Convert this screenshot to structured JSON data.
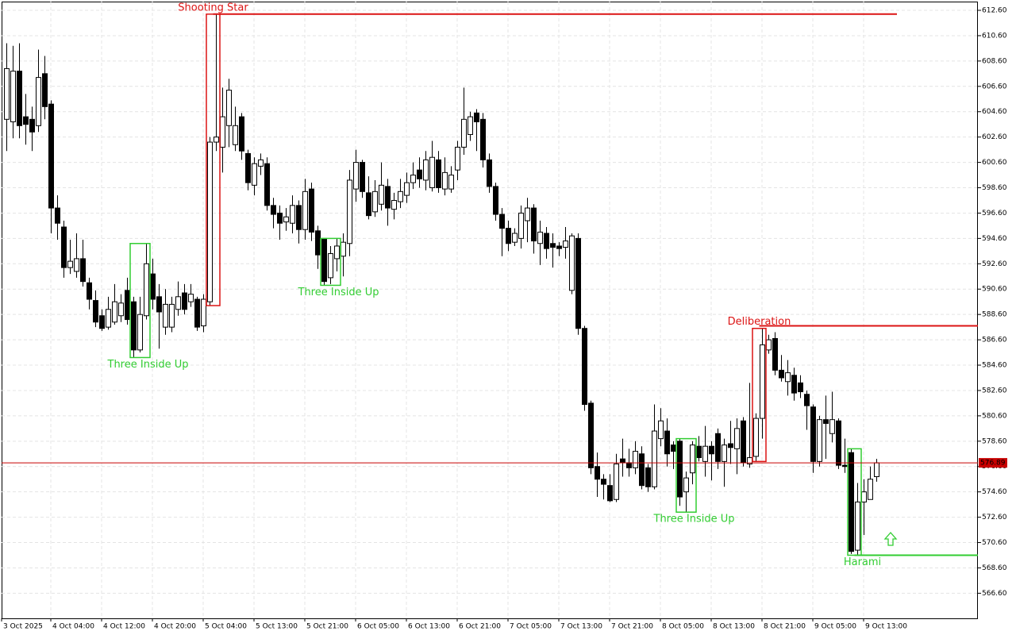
{
  "chart_data": {
    "type": "candlestick",
    "candles": [
      [
        604,
        610,
        601.5,
        608
      ],
      [
        603.8,
        609.8,
        602.5,
        607.8
      ],
      [
        607.8,
        610,
        602.5,
        603.5
      ],
      [
        604.2,
        606,
        602,
        603.6
      ],
      [
        604,
        605,
        601.5,
        603
      ],
      [
        603.5,
        609.5,
        603,
        607.3
      ],
      [
        607.6,
        609,
        604,
        605
      ],
      [
        605.2,
        605.5,
        595,
        597
      ],
      [
        597,
        598,
        594.5,
        595.8
      ],
      [
        595.5,
        596,
        591.5,
        592.3
      ],
      [
        592.3,
        594.5,
        591.8,
        592.8
      ],
      [
        592,
        595,
        591.5,
        593
      ],
      [
        593,
        594.5,
        590.8,
        591.2
      ],
      [
        591.1,
        591.5,
        589,
        589.8
      ],
      [
        589.7,
        590.5,
        587.6,
        588
      ],
      [
        588.5,
        589,
        587.3,
        587.5
      ],
      [
        587.6,
        590,
        587.4,
        589
      ],
      [
        588,
        591,
        587.8,
        589.6
      ],
      [
        588.5,
        590.2,
        588,
        589.5
      ],
      [
        590.5,
        591.5,
        587.8,
        588.2
      ],
      [
        589.6,
        590,
        585.2,
        585.8
      ],
      [
        585.8,
        590,
        585.6,
        588.6
      ],
      [
        588.5,
        594.2,
        588.2,
        592.6
      ],
      [
        591.8,
        593,
        589,
        589.8
      ],
      [
        590,
        591,
        585.9,
        588.8
      ],
      [
        587.6,
        590.6,
        587,
        589.4
      ],
      [
        587.6,
        590,
        587.2,
        589.4
      ],
      [
        589,
        591.2,
        588.5,
        590
      ],
      [
        590.3,
        591,
        588.6,
        589
      ],
      [
        589.6,
        591,
        589.2,
        590.2
      ],
      [
        589.8,
        590,
        587.3,
        587.6
      ],
      [
        587.7,
        590.2,
        587.2,
        589.8
      ],
      [
        589.6,
        602.6,
        589.3,
        602.2
      ],
      [
        602.2,
        612.3,
        601.5,
        602.6
      ],
      [
        601.8,
        606.5,
        599.8,
        604.2
      ],
      [
        603.5,
        607.2,
        601.8,
        606.3
      ],
      [
        602,
        605,
        601.5,
        603.5
      ],
      [
        604.2,
        604.5,
        600.8,
        601.5
      ],
      [
        601.3,
        601.6,
        598.4,
        599
      ],
      [
        598.8,
        601,
        598,
        600.5
      ],
      [
        600.3,
        601.3,
        599.6,
        600.8
      ],
      [
        600.5,
        601,
        596.8,
        597.2
      ],
      [
        597.2,
        597.8,
        595.4,
        596.5
      ],
      [
        596.6,
        597.2,
        594.5,
        595.8
      ],
      [
        595.9,
        597,
        595.2,
        596.3
      ],
      [
        595.8,
        598,
        595,
        597.2
      ],
      [
        597.2,
        597.6,
        594.2,
        595.3
      ],
      [
        595.3,
        599.3,
        594.5,
        598.3
      ],
      [
        598.5,
        599,
        594.4,
        595.1
      ],
      [
        595.2,
        595.6,
        592.2,
        593.3
      ],
      [
        594.6,
        594.6,
        590.9,
        591.2
      ],
      [
        591.5,
        594,
        591,
        593.4
      ],
      [
        593,
        594.6,
        592,
        594
      ],
      [
        593.2,
        595,
        591.6,
        594.3
      ],
      [
        594.2,
        600,
        593.2,
        599.2
      ],
      [
        598.5,
        601.6,
        597.5,
        600.6
      ],
      [
        600.6,
        600.8,
        597.8,
        598.3
      ],
      [
        598.2,
        599.5,
        596.1,
        596.4
      ],
      [
        596.7,
        599.2,
        596.3,
        598.3
      ],
      [
        597.3,
        600.6,
        596.8,
        598.8
      ],
      [
        598.7,
        599.3,
        595.6,
        597
      ],
      [
        596.9,
        598.2,
        596.1,
        597.6
      ],
      [
        597.5,
        599.3,
        597,
        598.3
      ],
      [
        598,
        599.8,
        597.4,
        599
      ],
      [
        599,
        600.6,
        598.5,
        599.6
      ],
      [
        600,
        601,
        598.6,
        599.3
      ],
      [
        599.2,
        601.5,
        598.4,
        600.8
      ],
      [
        598.6,
        602.3,
        598.3,
        601
      ],
      [
        600.8,
        601.5,
        598.2,
        598.6
      ],
      [
        598.5,
        601,
        598,
        599.8
      ],
      [
        598.5,
        600.3,
        598.2,
        599.6
      ],
      [
        600,
        602.3,
        599.2,
        601.8
      ],
      [
        601.8,
        606.5,
        601.2,
        604
      ],
      [
        602.8,
        604.6,
        602.3,
        604.2
      ],
      [
        604.5,
        604.8,
        601.5,
        603.8
      ],
      [
        604,
        604.5,
        600.2,
        600.8
      ],
      [
        600.8,
        601.3,
        598.2,
        598.7
      ],
      [
        598.7,
        599,
        596,
        596.5
      ],
      [
        596.5,
        597,
        593.2,
        595.4
      ],
      [
        595.4,
        596,
        593.6,
        594.2
      ],
      [
        594.3,
        595.4,
        594,
        595
      ],
      [
        594.6,
        597.2,
        593.8,
        596.6
      ],
      [
        596,
        597.8,
        594.3,
        597
      ],
      [
        597,
        597.3,
        593.4,
        594.4
      ],
      [
        594.2,
        596,
        592.5,
        595.1
      ],
      [
        595,
        595.5,
        593,
        593.8
      ],
      [
        594.2,
        595,
        592.3,
        593.9
      ],
      [
        594,
        594.3,
        593.2,
        593.8
      ],
      [
        593.9,
        595.5,
        593,
        594.4
      ],
      [
        590.5,
        595,
        590.2,
        594.8
      ],
      [
        594.6,
        595,
        587,
        587.5
      ],
      [
        587.5,
        587.7,
        581,
        581.5
      ],
      [
        581.6,
        581.8,
        576,
        576.5
      ],
      [
        576.6,
        577.7,
        574.2,
        575.6
      ],
      [
        575.6,
        576,
        574,
        575.2
      ],
      [
        575.1,
        576,
        573.8,
        573.9
      ],
      [
        574,
        577.6,
        573.8,
        576.8
      ],
      [
        577.2,
        578.8,
        575.8,
        576.9
      ],
      [
        576.9,
        578,
        575.8,
        576.5
      ],
      [
        576.5,
        578.6,
        576,
        577.8
      ],
      [
        577.6,
        578.2,
        574.8,
        575.1
      ],
      [
        576.5,
        576.8,
        574.6,
        575
      ],
      [
        575,
        581.5,
        574.8,
        579.4
      ],
      [
        578.8,
        581.2,
        578.2,
        580.2
      ],
      [
        579.4,
        580.4,
        576.6,
        577.6
      ],
      [
        578.3,
        578.6,
        576.4,
        577.8
      ],
      [
        578.6,
        578.8,
        573.5,
        574.2
      ],
      [
        574.6,
        576.2,
        573,
        575.7
      ],
      [
        576.1,
        578.6,
        575.2,
        578.3
      ],
      [
        578.2,
        579,
        577,
        577.3
      ],
      [
        577,
        579.8,
        575.8,
        578.2
      ],
      [
        578.2,
        578.6,
        575.5,
        577.6
      ],
      [
        579.2,
        579.6,
        576.4,
        577
      ],
      [
        577,
        578.8,
        575,
        578.3
      ],
      [
        578.4,
        580.2,
        576.8,
        578.1
      ],
      [
        578,
        580.4,
        576,
        579.6
      ],
      [
        580.2,
        580.5,
        576.6,
        576.9
      ],
      [
        576.8,
        583.2,
        576.5,
        577.3
      ],
      [
        577.4,
        580.8,
        577,
        580.4
      ],
      [
        580.4,
        587.5,
        578.8,
        586.2
      ],
      [
        585.8,
        587,
        585.5,
        586.6
      ],
      [
        586.7,
        587.2,
        583.8,
        584.2
      ],
      [
        584.2,
        585.4,
        583.3,
        583.6
      ],
      [
        583.3,
        585,
        582.2,
        584
      ],
      [
        583.8,
        584.4,
        581.8,
        582.4
      ],
      [
        583.2,
        583.8,
        582,
        582.5
      ],
      [
        582.3,
        582.6,
        579.5,
        581.4
      ],
      [
        581.3,
        581.5,
        576.1,
        577
      ],
      [
        577,
        580.6,
        576.6,
        580.3
      ],
      [
        580.3,
        582.2,
        577.2,
        580
      ],
      [
        579.2,
        582.5,
        578.5,
        580.3
      ],
      [
        580.2,
        580.4,
        576.4,
        576.7
      ],
      [
        576.7,
        578.8,
        576.1,
        576.6
      ],
      [
        577.7,
        578,
        569.7,
        569.9
      ],
      [
        570,
        575.3,
        569.6,
        573.8
      ],
      [
        573.8,
        575.6,
        571.2,
        574.6
      ],
      [
        574,
        576.6,
        574,
        575.6
      ],
      [
        575.8,
        577.2,
        575.4,
        576.89
      ]
    ],
    "x_labels": [
      "3 Oct 2025",
      "4 Oct 04:00",
      "4 Oct 12:00",
      "4 Oct 20:00",
      "5 Oct 04:00",
      "5 Oct 13:00",
      "5 Oct 21:00",
      "6 Oct 05:00",
      "6 Oct 13:00",
      "6 Oct 21:00",
      "7 Oct 05:00",
      "7 Oct 13:00",
      "7 Oct 21:00",
      "8 Oct 05:00",
      "8 Oct 13:00",
      "8 Oct 21:00",
      "9 Oct 05:00",
      "9 Oct 13:00"
    ],
    "ylim": [
      564.62,
      613.29
    ],
    "yticks": [
      {
        "value": 566.6,
        "label": "566.60"
      },
      {
        "value": 568.6,
        "label": "568.60"
      },
      {
        "value": 570.6,
        "label": "570.60"
      },
      {
        "value": 572.6,
        "label": "572.60"
      },
      {
        "value": 574.6,
        "label": "574.60"
      },
      {
        "value": 576.6,
        "label": "576.60"
      },
      {
        "value": 578.6,
        "label": "578.60"
      },
      {
        "value": 580.6,
        "label": "580.60"
      },
      {
        "value": 582.6,
        "label": "582.60"
      },
      {
        "value": 584.6,
        "label": "584.60"
      },
      {
        "value": 586.6,
        "label": "586.60"
      },
      {
        "value": 588.6,
        "label": "588.60"
      },
      {
        "value": 590.6,
        "label": "590.60"
      },
      {
        "value": 592.6,
        "label": "592.60"
      },
      {
        "value": 594.6,
        "label": "594.60"
      },
      {
        "value": 596.6,
        "label": "596.60"
      },
      {
        "value": 598.6,
        "label": "598.60"
      },
      {
        "value": 600.6,
        "label": "600.60"
      },
      {
        "value": 602.6,
        "label": "602.60"
      },
      {
        "value": 604.6,
        "label": "604.60"
      },
      {
        "value": 606.6,
        "label": "606.60"
      },
      {
        "value": 608.6,
        "label": "608.60"
      },
      {
        "value": 610.6,
        "label": "610.60"
      },
      {
        "value": 612.6,
        "label": "612.60"
      }
    ],
    "grid": true,
    "last_price": 576.89,
    "last_price_color": "#c80000",
    "candle_color": "#000000",
    "patterns": [
      {
        "label": "Shooting Star",
        "color": "#dc1414",
        "level": 612.3
      },
      {
        "label": "Three Inside Up",
        "color": "#32cd32"
      },
      {
        "label": "Three Inside Up",
        "color": "#32cd32"
      },
      {
        "label": "Three Inside Up",
        "color": "#32cd32"
      },
      {
        "label": "Deliberation",
        "color": "#dc1414",
        "level": 587.7
      },
      {
        "label": "Harami",
        "color": "#32cd32",
        "level": 569.6
      }
    ]
  }
}
